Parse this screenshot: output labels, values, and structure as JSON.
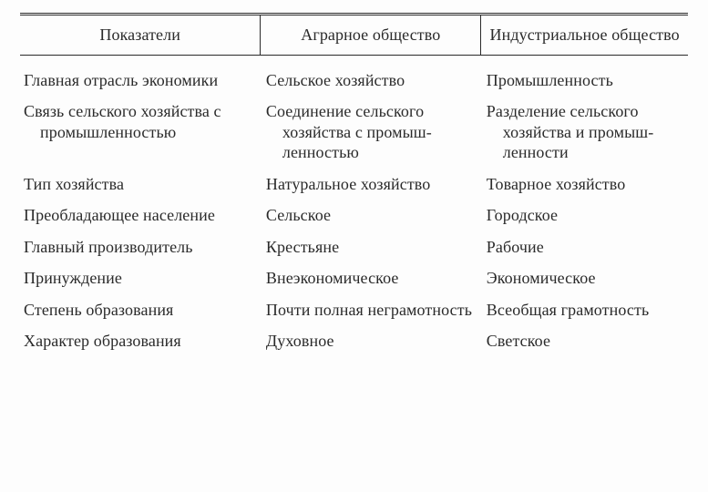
{
  "table": {
    "type": "table",
    "background_color": "#fdfdfd",
    "text_color": "#2a2a2a",
    "rule_color": "#2a2a2a",
    "font_family": "Times New Roman",
    "header_fontsize": 18,
    "body_fontsize": 18,
    "top_rule": "double",
    "header_bottom_rule": "single",
    "column_widths_pct": [
      36,
      33,
      31
    ],
    "columns": [
      "Показатели",
      "Аграрное общество",
      "Индустриальное общество"
    ],
    "rows": [
      [
        "Главная отрасль эконо­мики",
        "Сельское хозяйство",
        "Промышленность"
      ],
      [
        "Связь сельского хозяй­ства с промышлен­ностью",
        "Соединение сельского хозяйства с промыш­ленностью",
        "Разделение сельского хозяйства и промыш­ленности"
      ],
      [
        "Тип хозяйства",
        "Натуральное хозяйство",
        "Товарное хозяйство"
      ],
      [
        "Преобладающее насе­ление",
        "Сельское",
        "Городское"
      ],
      [
        "Главный производи­тель",
        "Крестьяне",
        "Рабочие"
      ],
      [
        "Принуждение",
        "Внеэкономическое",
        "Экономическое"
      ],
      [
        "Степень образования",
        "Почти полная негра­мотность",
        "Всеобщая грамотность"
      ],
      [
        "Характер образования",
        "Духовное",
        "Светское"
      ]
    ]
  }
}
